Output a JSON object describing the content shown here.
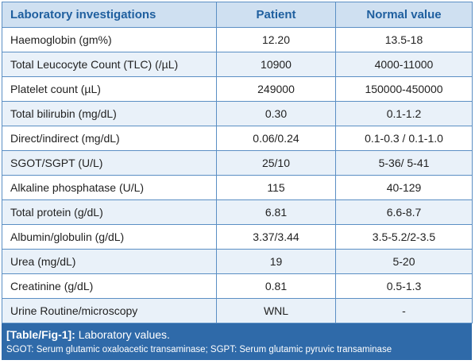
{
  "table": {
    "headers": [
      "Laboratory investigations",
      "Patient",
      "Normal value"
    ],
    "rows": [
      [
        "Haemoglobin (gm%)",
        "12.20",
        "13.5-18"
      ],
      [
        "Total Leucocyte Count (TLC) (/µL)",
        "10900",
        "4000-11000"
      ],
      [
        "Platelet count (µL)",
        "249000",
        "150000-450000"
      ],
      [
        "Total bilirubin (mg/dL)",
        "0.30",
        "0.1-1.2"
      ],
      [
        "Direct/indirect (mg/dL)",
        "0.06/0.24",
        "0.1-0.3 / 0.1-1.0"
      ],
      [
        "SGOT/SGPT (U/L)",
        "25/10",
        "5-36/ 5-41"
      ],
      [
        "Alkaline phosphatase (U/L)",
        "115",
        "40-129"
      ],
      [
        "Total protein (g/dL)",
        "6.81",
        "6.6-8.7"
      ],
      [
        "Albumin/globulin (g/dL)",
        "3.37/3.44",
        "3.5-5.2/2-3.5"
      ],
      [
        "Urea (mg/dL)",
        "19",
        "5-20"
      ],
      [
        "Creatinine (g/dL)",
        "0.81",
        "0.5-1.3"
      ],
      [
        "Urine Routine/microscopy",
        "WNL",
        "-"
      ]
    ]
  },
  "caption": {
    "tag": "[Table/Fig-1]:",
    "title": "Laboratory values.",
    "footnote": "SGOT: Serum glutamic oxaloacetic transaminase; SGPT: Serum glutamic pyruvic transaminase"
  },
  "colors": {
    "border": "#5b8fc4",
    "header_bg": "#cfe0f1",
    "header_text": "#1f5f9f",
    "stripe": "#e9f1f9",
    "caption_bg": "#2f6aa9"
  }
}
